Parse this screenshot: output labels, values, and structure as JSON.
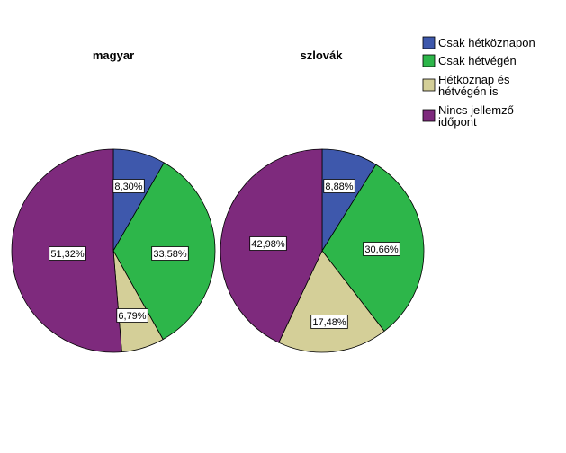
{
  "chart_data": {
    "type": "pie",
    "legend_position": "top-right",
    "categories": [
      "Csak hétköznapon",
      "Csak hétvégén",
      "Hétköznap és hétvégén is",
      "Nincs jellemző időpont"
    ],
    "legend_lines": [
      [
        "Csak hétköznapon"
      ],
      [
        "Csak hétvégén"
      ],
      [
        "Hétköznap és",
        "hétvégén is"
      ],
      [
        "Nincs jellemző",
        "időpont"
      ]
    ],
    "colors": [
      "#3e58ac",
      "#2db64a",
      "#d4cf98",
      "#7e2a7d"
    ],
    "pies": [
      {
        "title": "magyar",
        "values": [
          8.3,
          33.58,
          6.79,
          51.32
        ],
        "labels": [
          "8,30%",
          "33,58%",
          "6,79%",
          "51,32%"
        ]
      },
      {
        "title": "szlovák",
        "values": [
          8.88,
          30.66,
          17.48,
          42.98
        ],
        "labels": [
          "8,88%",
          "30,66%",
          "17,48%",
          "42,98%"
        ]
      }
    ]
  }
}
